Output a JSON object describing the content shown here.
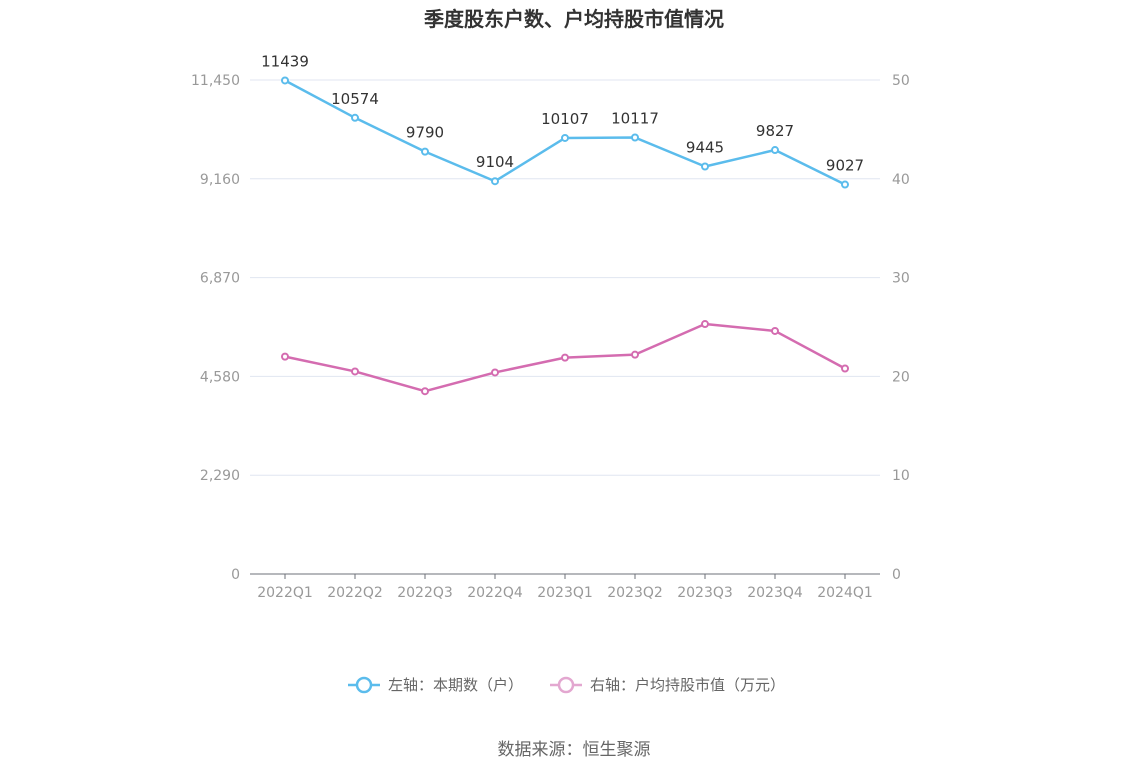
{
  "chart_data": {
    "type": "line",
    "title": "季度股东户数、户均持股市值情况",
    "categories": [
      "2022Q1",
      "2022Q2",
      "2022Q3",
      "2022Q4",
      "2023Q1",
      "2023Q2",
      "2023Q3",
      "2023Q4",
      "2024Q1"
    ],
    "left_axis": {
      "ticks": [
        "0",
        "2,290",
        "4,580",
        "6,870",
        "9,160",
        "11,450"
      ],
      "min": 0,
      "max": 11450
    },
    "right_axis": {
      "ticks": [
        "0",
        "10",
        "20",
        "30",
        "40",
        "50"
      ],
      "min": 0,
      "max": 50
    },
    "series": [
      {
        "name": "左轴：本期数（户）",
        "axis": "left",
        "color": "#5bbcec",
        "values": [
          11439,
          10574,
          9790,
          9104,
          10107,
          10117,
          9445,
          9827,
          9027
        ],
        "labels": [
          "11439",
          "10574",
          "9790",
          "9104",
          "10107",
          "10117",
          "9445",
          "9827",
          "9027"
        ]
      },
      {
        "name": "右轴：户均持股市值（万元）",
        "axis": "right",
        "color": "#d46cb0",
        "legend_color": "#e3a7d0",
        "values": [
          22.0,
          20.5,
          18.5,
          20.4,
          21.9,
          22.2,
          25.3,
          24.6,
          20.8
        ]
      }
    ],
    "grid": true,
    "legend_position": "bottom-center"
  },
  "source_text": "数据来源：恒生聚源"
}
